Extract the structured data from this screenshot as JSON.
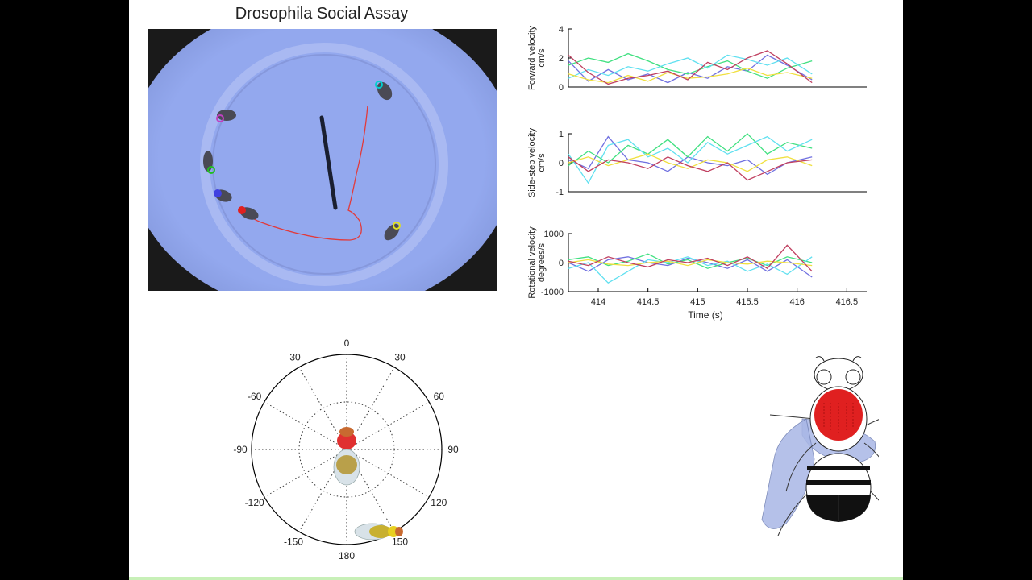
{
  "title": "Drosophila Social Assay",
  "colors": {
    "arena": "#8fa3e8",
    "trail": "#e23a3a",
    "flies": [
      "#00c8c8",
      "#c040c0",
      "#20c020",
      "#4040e0",
      "#e02020",
      "#e0e020"
    ]
  },
  "chart_data": [
    {
      "type": "line",
      "ylabel": "Forward velocity cm/s",
      "ylim": [
        0,
        4
      ],
      "yticks": [
        "4",
        "2",
        "0"
      ],
      "xlim": [
        413.7,
        416.7
      ],
      "series": [
        {
          "color": "#7070e0",
          "x": [
            413.7,
            413.9,
            414.1,
            414.3,
            414.5,
            414.7,
            414.9,
            415.1,
            415.3,
            415.5,
            415.7,
            415.9,
            416.15
          ],
          "values": [
            1.8,
            0.4,
            1.2,
            0.5,
            0.9,
            0.3,
            1.0,
            0.6,
            1.4,
            1.1,
            2.2,
            1.5,
            0.5
          ]
        },
        {
          "color": "#40e080",
          "x": [
            413.7,
            413.9,
            414.1,
            414.3,
            414.5,
            414.7,
            414.9,
            415.1,
            415.3,
            415.5,
            415.7,
            415.9,
            416.15
          ],
          "values": [
            1.5,
            2.0,
            1.7,
            2.3,
            1.8,
            1.2,
            0.9,
            1.4,
            1.8,
            1.1,
            0.6,
            1.3,
            1.8
          ]
        },
        {
          "color": "#60e0f0",
          "x": [
            413.7,
            413.9,
            414.1,
            414.3,
            414.5,
            414.7,
            414.9,
            415.1,
            415.3,
            415.5,
            415.7,
            415.9,
            416.15
          ],
          "values": [
            0.6,
            1.2,
            0.8,
            1.4,
            1.1,
            1.6,
            2.0,
            1.3,
            2.2,
            1.9,
            1.5,
            2.0,
            0.9
          ]
        },
        {
          "color": "#f0e040",
          "x": [
            413.7,
            413.9,
            414.1,
            414.3,
            414.5,
            414.7,
            414.9,
            415.1,
            415.3,
            415.5,
            415.7,
            415.9,
            416.15
          ],
          "values": [
            0.9,
            0.5,
            0.3,
            0.8,
            0.4,
            1.0,
            0.6,
            0.7,
            0.9,
            1.3,
            0.8,
            1.0,
            0.6
          ]
        },
        {
          "color": "#c04060",
          "x": [
            413.7,
            413.9,
            414.1,
            414.3,
            414.5,
            414.7,
            414.9,
            415.1,
            415.3,
            415.5,
            415.7,
            415.9,
            416.15
          ],
          "values": [
            2.2,
            1.0,
            0.2,
            0.6,
            0.8,
            1.1,
            0.5,
            1.7,
            1.2,
            2.0,
            2.5,
            1.6,
            0.3
          ]
        }
      ]
    },
    {
      "type": "line",
      "ylabel": "Side-step velocity cm/s",
      "ylim": [
        -1,
        1
      ],
      "yticks": [
        "1",
        "0",
        "-1"
      ],
      "xlim": [
        413.7,
        416.7
      ],
      "series": [
        {
          "color": "#7070e0",
          "x": [
            413.7,
            413.9,
            414.1,
            414.3,
            414.5,
            414.7,
            414.9,
            415.1,
            415.3,
            415.5,
            415.7,
            415.9,
            416.15
          ],
          "values": [
            0.1,
            -0.2,
            0.9,
            0.1,
            0.0,
            -0.3,
            0.2,
            0.0,
            -0.1,
            0.1,
            -0.4,
            0.0,
            0.2
          ]
        },
        {
          "color": "#40e080",
          "x": [
            413.7,
            413.9,
            414.1,
            414.3,
            414.5,
            414.7,
            414.9,
            415.1,
            415.3,
            415.5,
            415.7,
            415.9,
            416.15
          ],
          "values": [
            -0.1,
            0.4,
            0.0,
            0.6,
            0.3,
            0.8,
            0.2,
            0.9,
            0.4,
            1.0,
            0.3,
            0.7,
            0.5
          ]
        },
        {
          "color": "#60e0f0",
          "x": [
            413.7,
            413.9,
            414.1,
            414.3,
            414.5,
            414.7,
            414.9,
            415.1,
            415.3,
            415.5,
            415.7,
            415.9,
            416.15
          ],
          "values": [
            0.3,
            -0.7,
            0.6,
            0.8,
            0.2,
            0.5,
            0.0,
            0.7,
            0.3,
            0.6,
            0.9,
            0.4,
            0.8
          ]
        },
        {
          "color": "#f0e040",
          "x": [
            413.7,
            413.9,
            414.1,
            414.3,
            414.5,
            414.7,
            414.9,
            415.1,
            415.3,
            415.5,
            415.7,
            415.9,
            416.15
          ],
          "values": [
            0.0,
            0.2,
            -0.1,
            0.1,
            0.3,
            0.0,
            -0.2,
            0.1,
            0.0,
            -0.3,
            0.1,
            0.2,
            -0.1
          ]
        },
        {
          "color": "#c04060",
          "x": [
            413.7,
            413.9,
            414.1,
            414.3,
            414.5,
            414.7,
            414.9,
            415.1,
            415.3,
            415.5,
            415.7,
            415.9,
            416.15
          ],
          "values": [
            0.2,
            -0.3,
            0.1,
            0.0,
            -0.2,
            0.2,
            -0.1,
            -0.3,
            0.0,
            -0.6,
            -0.3,
            0.0,
            0.1
          ]
        }
      ]
    },
    {
      "type": "line",
      "ylabel": "Rotational velocity degrees/s",
      "xlabel": "Time (s)",
      "ylim": [
        -1000,
        1000
      ],
      "yticks": [
        "1000",
        "0",
        "-1000"
      ],
      "xlim": [
        413.7,
        416.7
      ],
      "xticks": [
        414,
        414.5,
        415,
        415.5,
        416,
        416.5
      ],
      "xticklabels": [
        "414",
        "414.5",
        "415",
        "415.5",
        "416",
        "416.5"
      ],
      "series": [
        {
          "color": "#7070e0",
          "x": [
            413.7,
            413.9,
            414.1,
            414.3,
            414.5,
            414.7,
            414.9,
            415.1,
            415.3,
            415.5,
            415.7,
            415.9,
            416.15
          ],
          "values": [
            0,
            -300,
            100,
            200,
            0,
            -100,
            150,
            0,
            -200,
            100,
            -300,
            100,
            -500
          ]
        },
        {
          "color": "#40e080",
          "x": [
            413.7,
            413.9,
            414.1,
            414.3,
            414.5,
            414.7,
            414.9,
            415.1,
            415.3,
            415.5,
            415.7,
            415.9,
            416.15
          ],
          "values": [
            100,
            200,
            -100,
            50,
            300,
            -50,
            100,
            -200,
            0,
            150,
            -100,
            200,
            0
          ]
        },
        {
          "color": "#60e0f0",
          "x": [
            413.7,
            413.9,
            414.1,
            414.3,
            414.5,
            414.7,
            414.9,
            415.1,
            415.3,
            415.5,
            415.7,
            415.9,
            416.15
          ],
          "values": [
            -200,
            0,
            -700,
            -300,
            100,
            0,
            200,
            -100,
            50,
            -300,
            -50,
            -400,
            200
          ]
        },
        {
          "color": "#f0e040",
          "x": [
            413.7,
            413.9,
            414.1,
            414.3,
            414.5,
            414.7,
            414.9,
            415.1,
            415.3,
            415.5,
            415.7,
            415.9,
            416.15
          ],
          "values": [
            0,
            100,
            -50,
            -100,
            0,
            50,
            -100,
            100,
            0,
            -50,
            50,
            0,
            -100
          ]
        },
        {
          "color": "#c04060",
          "x": [
            413.7,
            413.9,
            414.1,
            414.3,
            414.5,
            414.7,
            414.9,
            415.1,
            415.3,
            415.5,
            415.7,
            415.9,
            416.15
          ],
          "values": [
            50,
            -100,
            200,
            0,
            -150,
            100,
            0,
            150,
            -100,
            200,
            -200,
            600,
            -300
          ]
        }
      ]
    }
  ],
  "polar": {
    "angle_labels": [
      "0",
      "30",
      "60",
      "90",
      "120",
      "150",
      "180",
      "-150",
      "-120",
      "-90",
      "-60",
      "-30"
    ],
    "angles": [
      0,
      30,
      60,
      90,
      120,
      150,
      180,
      -150,
      -120,
      -90,
      -60,
      -30
    ]
  }
}
